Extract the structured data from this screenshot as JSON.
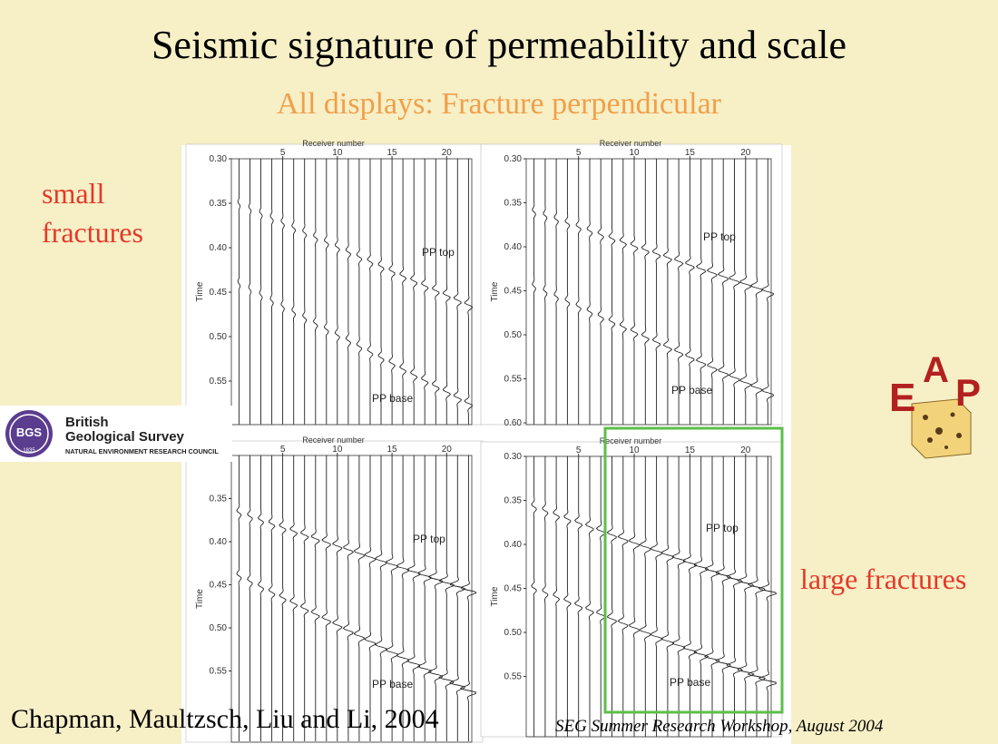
{
  "header": {
    "title": "Seismic signature of permeability and scale",
    "subtitle": "All displays: Fracture perpendicular"
  },
  "left_label": "small fractures",
  "right_label": "large fractures",
  "panels": [
    {
      "x_label": "Receiver number",
      "y_label": "Time",
      "x_ticks": [
        "5",
        "10",
        "15",
        "20"
      ],
      "y_ticks": [
        "0.30",
        "0.35",
        "0.40",
        "0.45",
        "0.50",
        "0.55"
      ],
      "annotations": [
        "PP top",
        "PP base"
      ]
    },
    {
      "x_label": "Receiver number",
      "y_label": "Time",
      "x_ticks": [
        "5",
        "10",
        "15",
        "20"
      ],
      "y_ticks": [
        "0.30",
        "0.35",
        "0.40",
        "0.45",
        "0.50",
        "0.55",
        "0.60"
      ],
      "annotations": [
        "PP top",
        "PP base"
      ]
    },
    {
      "x_label": "Receiver number",
      "y_label": "Time",
      "x_ticks": [
        "5",
        "10",
        "15",
        "20"
      ],
      "y_ticks": [
        "0.35",
        "0.40",
        "0.45",
        "0.50",
        "0.55"
      ],
      "annotations": [
        "PP top",
        "PP base"
      ]
    },
    {
      "x_label": "Receiver number",
      "y_label": "Time",
      "x_ticks": [
        "5",
        "10",
        "15",
        "20"
      ],
      "y_ticks": [
        "0.30",
        "0.35",
        "0.40",
        "0.45",
        "0.50",
        "0.55"
      ],
      "annotations": [
        "PP top",
        "PP base"
      ]
    }
  ],
  "logos": {
    "bgs": {
      "mark": "BGS",
      "year": "1835",
      "name_line1": "British",
      "name_line2": "Geological Survey",
      "council": "NATURAL ENVIRONMENT RESEARCH COUNCIL"
    },
    "eap": [
      "E",
      "A",
      "P"
    ]
  },
  "footer": {
    "authors": "Chapman, Maultzsch, Liu and Li, 2004",
    "venue": "SEG Summer Research Workshop, August 2004"
  }
}
